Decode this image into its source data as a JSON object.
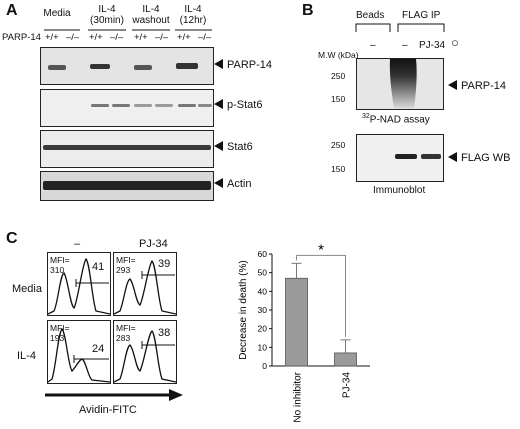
{
  "panel_a": {
    "letter": "A",
    "genotype_row_label": "PARP-14",
    "conditions": [
      "Media",
      "IL-4\n(30min)",
      "IL-4\nwashout",
      "IL-4\n(12hr)"
    ],
    "genotypes": [
      "+/+",
      "–/–",
      "+/+",
      "–/–",
      "+/+",
      "–/–",
      "+/+",
      "–/–"
    ],
    "blots": [
      "PARP-14",
      "p-Stat6",
      "Stat6",
      "Actin"
    ]
  },
  "panel_b": {
    "letter": "B",
    "groups": [
      "Beads",
      "FLAG IP"
    ],
    "lane_labels": [
      "–",
      "–",
      "PJ-34"
    ],
    "mw_unit": "M.W (kDa)",
    "mw_top": [
      "250",
      "150"
    ],
    "mw_bottom": [
      "250",
      "150"
    ],
    "top_label": "PARP-14",
    "top_caption": "32P-NAD assay",
    "top_caption_sup": "32",
    "top_caption_rest": "P-NAD assay",
    "bottom_label": "FLAG WB",
    "bottom_caption": "Immunoblot",
    "circle_symbol": "○"
  },
  "panel_c": {
    "letter": "C",
    "columns": [
      "–",
      "PJ-34"
    ],
    "rows": [
      "Media",
      "IL-4"
    ],
    "histograms": [
      {
        "mfi_label": "MFI=",
        "mfi": "310",
        "percent": "41"
      },
      {
        "mfi_label": "MFI=",
        "mfi": "293",
        "percent": "39"
      },
      {
        "mfi_label": "MFI=",
        "mfi": "193",
        "percent": "24"
      },
      {
        "mfi_label": "MFI=",
        "mfi": "283",
        "percent": "38"
      }
    ],
    "x_axis_label": "Avidin-FITC"
  },
  "chart_data": {
    "type": "bar",
    "categories": [
      "No inhibitor",
      "PJ-34"
    ],
    "values": [
      47,
      7
    ],
    "errors": [
      8,
      7
    ],
    "ylabel": "Decrease in death (%)",
    "ylim": [
      0,
      60
    ],
    "yticks": [
      0,
      10,
      20,
      30,
      40,
      50,
      60
    ],
    "significance": "*",
    "bar_color": "#9a9a9a"
  }
}
